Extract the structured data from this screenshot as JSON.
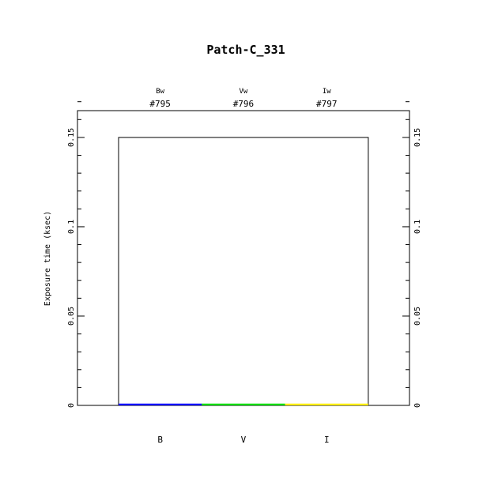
{
  "chart_data": {
    "type": "bar",
    "title": "Patch-C_331",
    "ylabel": "Exposure time (ksec)",
    "xlabel": "",
    "ylim": [
      0,
      0.165
    ],
    "yticks": [
      0,
      0.05,
      0.1,
      0.15
    ],
    "ytick_labels": [
      "0",
      "0.05",
      "0.1",
      "0.15"
    ],
    "minor_tick_step": 0.01,
    "categories": [
      "B",
      "V",
      "I"
    ],
    "top_labels": [
      {
        "filter": "Bw",
        "id": "#795"
      },
      {
        "filter": "Vw",
        "id": "#796"
      },
      {
        "filter": "Iw",
        "id": "#797"
      }
    ],
    "total_outline_value": 0.15,
    "values": [
      0.001,
      0.001,
      0.001
    ],
    "colors": [
      "#0000ff",
      "#00dd00",
      "#ffee00"
    ],
    "grid": false
  }
}
